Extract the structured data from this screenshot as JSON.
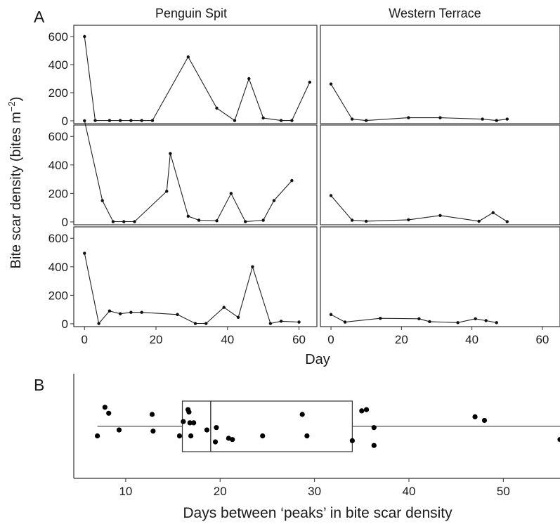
{
  "panel_a_label": "A",
  "panel_b_label": "B",
  "chart_data": [
    {
      "type": "line",
      "panel": "A",
      "facet_columns": [
        "Penguin Spit",
        "Western Terrace"
      ],
      "xlabel": "Day",
      "ylabel_main": "Bite scar density (bites m",
      "ylabel_sup": "−2",
      "ylabel_close": ")",
      "xlim": [
        -3,
        65
      ],
      "ylim": [
        -20,
        680
      ],
      "x_ticks": [
        0,
        20,
        40,
        60
      ],
      "y_ticks": [
        0,
        200,
        400,
        600
      ],
      "grid": false,
      "facets": [
        {
          "column": "Penguin Spit",
          "row": 1,
          "points": [
            [
              0,
              600
            ],
            [
              3,
              2
            ],
            [
              7,
              2
            ],
            [
              10,
              2
            ],
            [
              13,
              2
            ],
            [
              16,
              2
            ],
            [
              19,
              2
            ],
            [
              29,
              455
            ],
            [
              37,
              90
            ],
            [
              42,
              2
            ],
            [
              46,
              300
            ],
            [
              50,
              20
            ],
            [
              55,
              2
            ],
            [
              58,
              2
            ],
            [
              63,
              275
            ]
          ]
        },
        {
          "column": "Western Terrace",
          "row": 1,
          "points": [
            [
              0,
              262
            ],
            [
              6,
              12
            ],
            [
              10,
              2
            ],
            [
              22,
              22
            ],
            [
              31,
              22
            ],
            [
              43,
              12
            ],
            [
              47,
              2
            ],
            [
              50,
              12
            ]
          ]
        },
        {
          "column": "Penguin Spit",
          "row": 2,
          "points": [
            [
              0,
              710
            ],
            [
              5,
              150
            ],
            [
              8,
              2
            ],
            [
              11,
              2
            ],
            [
              14,
              2
            ],
            [
              23,
              215
            ],
            [
              24,
              480
            ],
            [
              29,
              40
            ],
            [
              32,
              12
            ],
            [
              37,
              8
            ],
            [
              41,
              200
            ],
            [
              45,
              2
            ],
            [
              50,
              12
            ],
            [
              53,
              150
            ],
            [
              58,
              290
            ]
          ]
        },
        {
          "column": "Western Terrace",
          "row": 2,
          "points": [
            [
              0,
              185
            ],
            [
              6,
              12
            ],
            [
              10,
              5
            ],
            [
              22,
              15
            ],
            [
              31,
              45
            ],
            [
              42,
              5
            ],
            [
              46,
              65
            ],
            [
              50,
              2
            ]
          ]
        },
        {
          "column": "Penguin Spit",
          "row": 3,
          "points": [
            [
              0,
              495
            ],
            [
              4,
              2
            ],
            [
              7,
              90
            ],
            [
              10,
              70
            ],
            [
              13,
              80
            ],
            [
              16,
              80
            ],
            [
              26,
              65
            ],
            [
              31,
              2
            ],
            [
              34,
              2
            ],
            [
              39,
              115
            ],
            [
              43,
              45
            ],
            [
              47,
              400
            ],
            [
              52,
              2
            ],
            [
              55,
              18
            ],
            [
              60,
              12
            ]
          ]
        },
        {
          "column": "Western Terrace",
          "row": 3,
          "points": [
            [
              0,
              65
            ],
            [
              4,
              12
            ],
            [
              14,
              38
            ],
            [
              25,
              35
            ],
            [
              28,
              15
            ],
            [
              36,
              8
            ],
            [
              41,
              35
            ],
            [
              44,
              22
            ],
            [
              47,
              8
            ]
          ]
        }
      ]
    },
    {
      "type": "box",
      "panel": "B",
      "xlabel": "Days between ‘peaks’ in bite scar density",
      "xlim": [
        4.5,
        56
      ],
      "x_ticks": [
        10,
        20,
        30,
        40,
        50
      ],
      "box": {
        "whisker_low": 7,
        "q1": 16,
        "median": 19,
        "q3": 34,
        "whisker_high": 56
      },
      "jitter_points": [
        [
          7,
          -0.8
        ],
        [
          7.8,
          1.6
        ],
        [
          8.2,
          1.1
        ],
        [
          9.3,
          -0.3
        ],
        [
          12.8,
          1.0
        ],
        [
          12.9,
          -0.4
        ],
        [
          15.7,
          -0.8
        ],
        [
          16.1,
          0.4
        ],
        [
          16.6,
          1.4
        ],
        [
          16.7,
          1.2
        ],
        [
          16.8,
          0.3
        ],
        [
          16.9,
          -0.8
        ],
        [
          17.2,
          0.3
        ],
        [
          18.6,
          -0.3
        ],
        [
          19.5,
          -1.3
        ],
        [
          19.6,
          -0.1
        ],
        [
          20.9,
          -1.0
        ],
        [
          21.3,
          -1.1
        ],
        [
          24.5,
          -0.8
        ],
        [
          28.7,
          1.0
        ],
        [
          29.2,
          -0.8
        ],
        [
          34,
          -1.2
        ],
        [
          35,
          1.3
        ],
        [
          35.5,
          1.4
        ],
        [
          36.3,
          -0.1
        ],
        [
          36.3,
          -1.6
        ],
        [
          47,
          0.8
        ],
        [
          48,
          0.5
        ],
        [
          56,
          -1.1
        ]
      ]
    }
  ]
}
